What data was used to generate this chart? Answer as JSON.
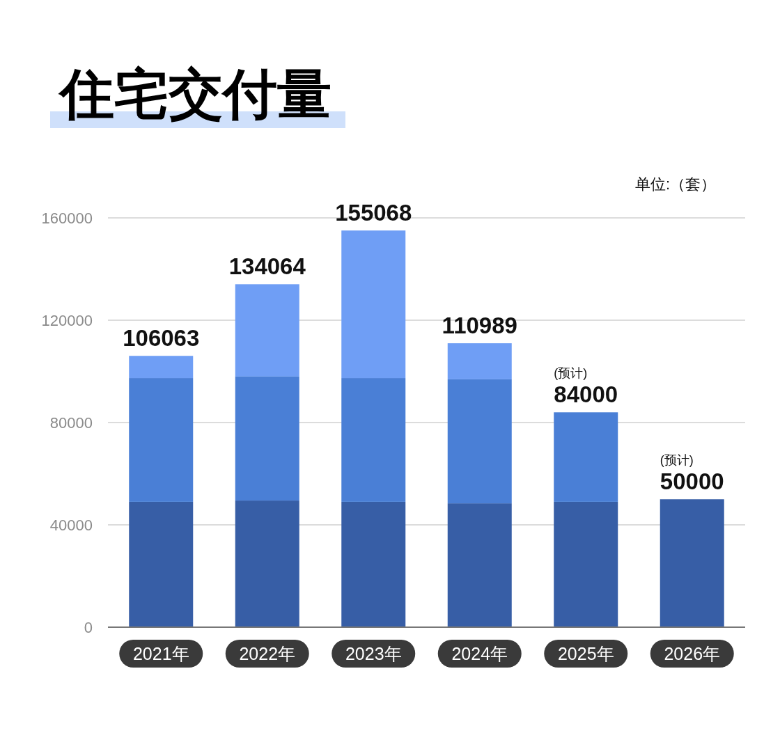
{
  "chart_data": {
    "type": "bar",
    "title": "住宅交付量",
    "categories": [
      "2021年",
      "2022年",
      "2023年",
      "2024年",
      "2025年",
      "2026年"
    ],
    "stacked": true,
    "series": [
      {
        "color": "#375ea6",
        "values": [
          49000,
          49500,
          49000,
          48400,
          49000,
          50000
        ]
      },
      {
        "color": "#4a7fd6",
        "values": [
          48400,
          48500,
          48400,
          48500,
          35000,
          null
        ]
      },
      {
        "color": "#6f9ef5",
        "values": [
          8663,
          36064,
          57668,
          14089,
          null,
          null
        ]
      }
    ],
    "totals": [
      "106063",
      "134064",
      "155068",
      "110989",
      "84000",
      "50000"
    ],
    "ylim": [
      0,
      160000
    ],
    "yticks": [
      0,
      40000,
      80000,
      120000,
      160000
    ],
    "grid": "y",
    "annotations": [
      "单位:（套）",
      {
        "text": "(预计)",
        "x": "2025年",
        "y": 84000
      },
      {
        "text": "(预计)",
        "x": "2026年",
        "y": 50000
      }
    ]
  }
}
